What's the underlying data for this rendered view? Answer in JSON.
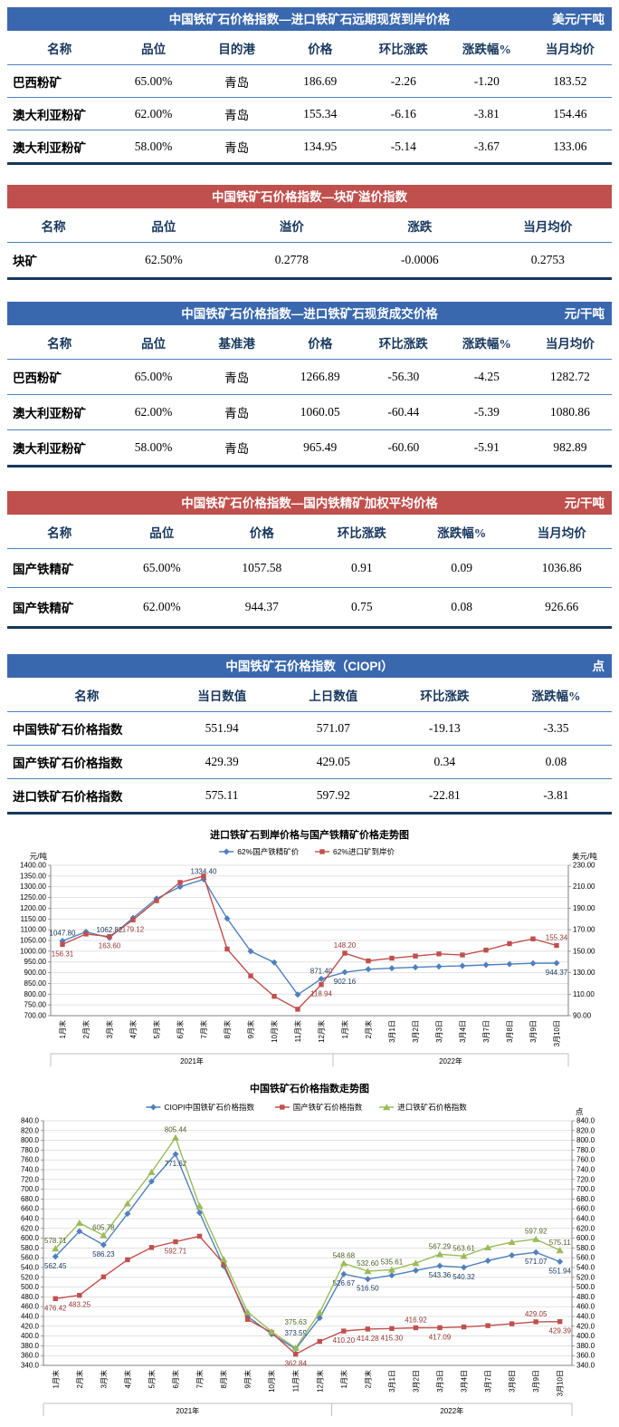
{
  "tables": [
    {
      "title": "中国铁矿石价格指数—进口铁矿石远期现货到岸价格",
      "unit": "美元/干吨",
      "title_bg": "#3A68AE",
      "columns": [
        "名称",
        "品位",
        "目的港",
        "价格",
        "环比涨跌",
        "涨跌幅%",
        "当月均价"
      ],
      "rows": [
        [
          "巴西粉矿",
          "65.00%",
          "青岛",
          "186.69",
          "-2.26",
          "-1.20",
          "183.52"
        ],
        [
          "澳大利亚粉矿",
          "62.00%",
          "青岛",
          "155.34",
          "-6.16",
          "-3.81",
          "154.46"
        ],
        [
          "澳大利亚粉矿",
          "58.00%",
          "青岛",
          "134.95",
          "-5.14",
          "-3.67",
          "133.06"
        ]
      ]
    },
    {
      "title": "中国铁矿石价格指数—块矿溢价指数",
      "unit": "",
      "title_bg": "#C0504D",
      "columns": [
        "名称",
        "品位",
        "溢价",
        "涨跌",
        "当月均价"
      ],
      "rows": [
        [
          "块矿",
          "62.50%",
          "0.2778",
          "-0.0006",
          "0.2753"
        ]
      ]
    },
    {
      "title": "中国铁矿石价格指数—进口铁矿石现货成交价格",
      "unit": "元/干吨",
      "title_bg": "#3A68AE",
      "columns": [
        "名称",
        "品位",
        "基准港",
        "价格",
        "环比涨跌",
        "涨跌幅%",
        "当月均价"
      ],
      "rows": [
        [
          "巴西粉矿",
          "65.00%",
          "青岛",
          "1266.89",
          "-56.30",
          "-4.25",
          "1282.72"
        ],
        [
          "澳大利亚粉矿",
          "62.00%",
          "青岛",
          "1060.05",
          "-60.44",
          "-5.39",
          "1080.86"
        ],
        [
          "澳大利亚粉矿",
          "58.00%",
          "青岛",
          "965.49",
          "-60.60",
          "-5.91",
          "982.89"
        ]
      ]
    },
    {
      "title": "中国铁矿石价格指数—国内铁精矿加权平均价格",
      "unit": "元/干吨",
      "title_bg": "#C0504D",
      "columns": [
        "名称",
        "品位",
        "价格",
        "环比涨跌",
        "涨跌幅%",
        "当月均价"
      ],
      "rows": [
        [
          "国产铁精矿",
          "65.00%",
          "1057.58",
          "0.91",
          "0.09",
          "1036.86"
        ],
        [
          "国产铁精矿",
          "62.00%",
          "944.37",
          "0.75",
          "0.08",
          "926.66"
        ]
      ]
    },
    {
      "title": "中国铁矿石价格指数（CIOPI）",
      "unit": "点",
      "title_bg": "#3A68AE",
      "columns": [
        "名称",
        "当日数值",
        "上日数值",
        "环比涨跌",
        "涨跌幅%"
      ],
      "rows": [
        [
          "中国铁矿石价格指数",
          "551.94",
          "571.07",
          "-19.13",
          "-3.35"
        ],
        [
          "国产铁矿石价格指数",
          "429.39",
          "429.05",
          "0.34",
          "0.08"
        ],
        [
          "进口铁矿石价格指数",
          "575.11",
          "597.92",
          "-22.81",
          "-3.81"
        ]
      ]
    }
  ],
  "chart_data": [
    {
      "type": "line",
      "title": "进口铁矿石到岸价格与国产铁精矿价格走势图",
      "left_axis": {
        "unit": "元/吨",
        "min": 700,
        "max": 1400,
        "step": 50,
        "decimals": 2
      },
      "right_axis": {
        "unit": "美元/吨",
        "min": 90,
        "max": 230,
        "step": 20,
        "decimals": 2
      },
      "categories": [
        "1月末",
        "2月末",
        "3月末",
        "4月末",
        "5月末",
        "6月末",
        "7月末",
        "8月末",
        "9月末",
        "10月末",
        "11月末",
        "12月末",
        "1月末",
        "2月末",
        "3月1日",
        "3月2日",
        "3月3日",
        "3月4日",
        "3月7日",
        "3月8日",
        "3月9日",
        "3月10日"
      ],
      "year_groups": [
        {
          "label": "2021年",
          "from": 0,
          "to": 11
        },
        {
          "label": "2022年",
          "from": 12,
          "to": 21
        }
      ],
      "series": [
        {
          "name": "62%国产铁精矿价",
          "color": "#4F81BD",
          "label_color": "#17375E",
          "marker": "diamond",
          "axis": "left",
          "values": [
            1047.8,
            1090,
            1062.82,
            1155,
            1245,
            1300,
            1334.4,
            1152,
            1000,
            948,
            798,
            871.4,
            902.16,
            916,
            921,
            925,
            929,
            932,
            936,
            940,
            943.62,
            944.37
          ],
          "labels": [
            {
              "i": 0,
              "pos": "a"
            },
            {
              "i": 2,
              "pos": "a"
            },
            {
              "i": 6,
              "pos": "a"
            },
            {
              "i": 11,
              "pos": "a"
            },
            {
              "i": 12,
              "pos": "b"
            },
            {
              "i": 21,
              "pos": "b"
            }
          ]
        },
        {
          "name": "62%进口矿到岸价",
          "color": "#C0504D",
          "label_color": "#943634",
          "marker": "square",
          "axis": "right",
          "values": [
            156.31,
            166,
            163.6,
            179.12,
            197,
            214,
            220,
            152,
            127,
            108,
            96,
            118.94,
            148.2,
            141,
            143.5,
            145.5,
            147.5,
            146.5,
            151,
            157,
            161.5,
            155.34
          ],
          "labels": [
            {
              "i": 0,
              "pos": "b"
            },
            {
              "i": 2,
              "pos": "b"
            },
            {
              "i": 3,
              "pos": "b"
            },
            {
              "i": 11,
              "pos": "b"
            },
            {
              "i": 12,
              "pos": "a"
            },
            {
              "i": 21,
              "pos": "a"
            }
          ]
        }
      ]
    },
    {
      "type": "line",
      "title": "中国铁矿石价格指数走势图",
      "left_axis": {
        "unit": "",
        "min": 340,
        "max": 840,
        "step": 20,
        "decimals": 1
      },
      "right_axis": {
        "unit": "点",
        "min": 340,
        "max": 840,
        "step": 20,
        "decimals": 1
      },
      "categories": [
        "1月末",
        "2月末",
        "3月末",
        "4月末",
        "5月末",
        "6月末",
        "7月末",
        "8月末",
        "9月末",
        "10月末",
        "11月末",
        "12月末",
        "1月末",
        "2月末",
        "3月1日",
        "3月2日",
        "3月3日",
        "3月4日",
        "3月7日",
        "3月8日",
        "3月9日",
        "3月10日"
      ],
      "year_groups": [
        {
          "label": "2021年",
          "from": 0,
          "to": 11
        },
        {
          "label": "2022年",
          "from": 12,
          "to": 21
        }
      ],
      "series": [
        {
          "name": "CIOPI中国铁矿石价格指数",
          "color": "#4F81BD",
          "label_color": "#17375E",
          "marker": "diamond",
          "axis": "left",
          "values": [
            562.45,
            614,
            586.23,
            650,
            716,
            771.62,
            652,
            543,
            440,
            404,
            373.59,
            437,
            526.67,
            516.5,
            524,
            534,
            543.36,
            540.32,
            554,
            565,
            571.07,
            551.94
          ],
          "labels": [
            {
              "i": 0,
              "pos": "b"
            },
            {
              "i": 2,
              "pos": "b"
            },
            {
              "i": 5,
              "pos": "b"
            },
            {
              "i": 10,
              "off": -15
            },
            {
              "i": 12,
              "pos": "b"
            },
            {
              "i": 13,
              "pos": "b"
            },
            {
              "i": 16,
              "pos": "b"
            },
            {
              "i": 17,
              "pos": "b"
            },
            {
              "i": 20,
              "pos": "b"
            },
            {
              "i": 21,
              "pos": "b"
            }
          ]
        },
        {
          "name": "国产铁矿石价格指数",
          "color": "#C0504D",
          "label_color": "#943634",
          "marker": "square",
          "axis": "left",
          "values": [
            476.42,
            483.25,
            521,
            556,
            581,
            592.71,
            604,
            548,
            434,
            407,
            362.84,
            389,
            410.2,
            414.28,
            415.3,
            416.92,
            417.09,
            418.6,
            421.3,
            425,
            429.05,
            429.39
          ],
          "labels": [
            {
              "i": 0,
              "pos": "b"
            },
            {
              "i": 1,
              "pos": "b"
            },
            {
              "i": 5,
              "pos": "b"
            },
            {
              "i": 10,
              "pos": "b"
            },
            {
              "i": 12,
              "pos": "b"
            },
            {
              "i": 13,
              "pos": "b"
            },
            {
              "i": 14,
              "pos": "b"
            },
            {
              "i": 15,
              "pos": "a"
            },
            {
              "i": 16,
              "pos": "b"
            },
            {
              "i": 20,
              "pos": "a"
            },
            {
              "i": 21,
              "pos": "b"
            }
          ]
        },
        {
          "name": "进口铁矿石价格指数",
          "color": "#9BBB59",
          "label_color": "#4F6228",
          "marker": "triangle",
          "axis": "left",
          "values": [
            578.71,
            631,
            605.78,
            671,
            735,
            805.44,
            666,
            557,
            449,
            409,
            375.63,
            448,
            548.68,
            532.6,
            535.61,
            549,
            567.29,
            563.61,
            581,
            592,
            597.92,
            575.11
          ],
          "labels": [
            {
              "i": 0,
              "pos": "a"
            },
            {
              "i": 2,
              "pos": "a"
            },
            {
              "i": 5,
              "pos": "a"
            },
            {
              "i": 10,
              "off": -26
            },
            {
              "i": 12,
              "pos": "a"
            },
            {
              "i": 13,
              "pos": "a"
            },
            {
              "i": 14,
              "pos": "a"
            },
            {
              "i": 16,
              "pos": "a"
            },
            {
              "i": 17,
              "pos": "a"
            },
            {
              "i": 20,
              "pos": "a"
            },
            {
              "i": 21,
              "pos": "a"
            }
          ]
        }
      ]
    }
  ]
}
